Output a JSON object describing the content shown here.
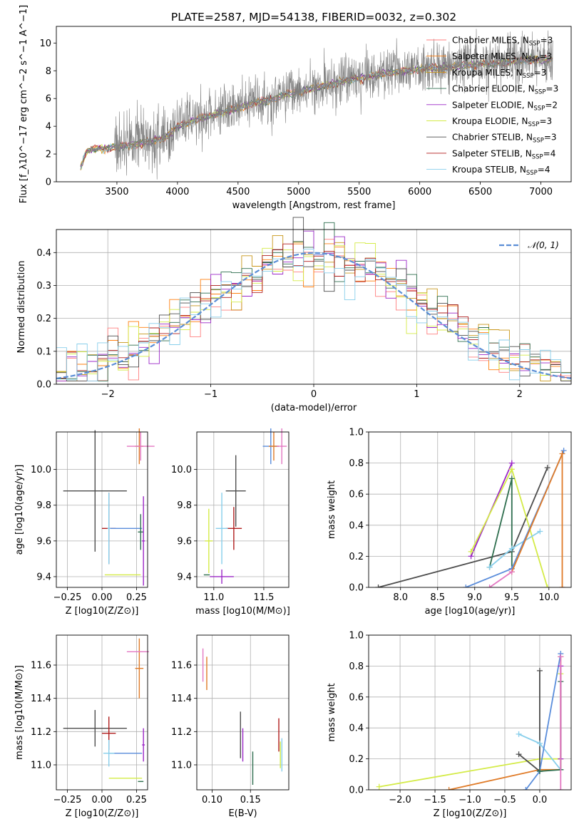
{
  "figure": {
    "title": "PLATE=2587, MJD=54138, FIBERID=0032, z=0.302"
  },
  "colors": {
    "chabrier_miles": "#ff7f7f",
    "salpeter_miles": "#ff7f0e",
    "kroupa_miles": "#c89619",
    "chabrier_elodie": "#2f6f4f",
    "salpeter_elodie": "#9b27c7",
    "kroupa_elodie": "#d4eb47",
    "chabrier_stelib": "#4d4d4d",
    "salpeter_stelib": "#b01c1c",
    "kroupa_stelib": "#87ceeb",
    "blue_model": "#5a8ddb",
    "pink_model": "#e377c2",
    "orange_model": "#e07b28",
    "spectrum": "#7f7f7f",
    "normal_curve": "#5b8ed6",
    "grid": "#b0b0b0"
  },
  "chart_data": [
    {
      "id": "spectrum",
      "type": "line",
      "xlabel": "wavelength [Angstrom, rest frame]",
      "ylabel": "Flux [f_λ10^−17 erg cm^−2 s^−1 A^−1]",
      "xlim": [
        3000,
        7250
      ],
      "ylim": [
        0,
        11.2
      ],
      "xticks": [
        3500,
        4000,
        4500,
        5000,
        5500,
        6000,
        6500,
        7000
      ],
      "yticks": [
        0,
        2,
        4,
        6,
        8,
        10
      ],
      "grid": false,
      "legend_position": "upper right",
      "legend": [
        {
          "label": "Chabrier MILES, N",
          "sub": "SSP",
          "tail": "=3",
          "color": "chabrier_miles"
        },
        {
          "label": "Salpeter MILES, N",
          "sub": "SSP",
          "tail": "=3",
          "color": "salpeter_miles"
        },
        {
          "label": "Kroupa MILES, N",
          "sub": "SSP",
          "tail": "=3",
          "color": "kroupa_miles"
        },
        {
          "label": "Chabrier ELODIE, N",
          "sub": "SSP",
          "tail": "=3",
          "color": "chabrier_elodie"
        },
        {
          "label": "Salpeter ELODIE, N",
          "sub": "SSP",
          "tail": "=2",
          "color": "salpeter_elodie"
        },
        {
          "label": "Kroupa ELODIE, N",
          "sub": "SSP",
          "tail": "=3",
          "color": "kroupa_elodie"
        },
        {
          "label": "Chabrier STELIB, N",
          "sub": "SSP",
          "tail": "=3",
          "color": "chabrier_stelib"
        },
        {
          "label": "Salpeter STELIB, N",
          "sub": "SSP",
          "tail": "=4",
          "color": "salpeter_stelib"
        },
        {
          "label": "Kroupa STELIB, N",
          "sub": "SSP",
          "tail": "=4",
          "color": "kroupa_stelib"
        }
      ],
      "continuum": {
        "x": [
          3200,
          3250,
          3300,
          3400,
          3500,
          3600,
          3700,
          3800,
          3900,
          4000,
          4100,
          4200,
          4300,
          4400,
          4500,
          4600,
          4700,
          4800,
          4900,
          5000,
          5100,
          5200,
          5300,
          5400,
          5500,
          5600,
          5700,
          5800,
          5900,
          6000,
          6100,
          6200,
          6300,
          6400,
          6500,
          6600,
          6700,
          6800,
          6900,
          7000,
          7100
        ],
        "y": [
          1.0,
          2.2,
          2.35,
          2.4,
          2.5,
          2.6,
          2.8,
          3.0,
          3.2,
          4.0,
          4.3,
          4.6,
          4.8,
          5.1,
          5.3,
          5.6,
          5.8,
          6.0,
          6.3,
          6.5,
          6.7,
          6.9,
          7.1,
          7.3,
          7.5,
          7.6,
          7.8,
          7.9,
          8.0,
          8.1,
          8.2,
          8.2,
          8.3,
          8.4,
          8.5,
          8.5,
          8.6,
          8.7,
          8.8,
          8.8,
          8.8
        ]
      }
    },
    {
      "id": "residuals",
      "type": "histogram",
      "xlabel": "(data-model)/error",
      "ylabel": "Normed distribution",
      "xlim": [
        -2.5,
        2.5
      ],
      "ylim": [
        0,
        0.47
      ],
      "xticks": [
        -2,
        -1,
        0,
        1,
        2
      ],
      "yticks": [
        0.0,
        0.1,
        0.2,
        0.3,
        0.4
      ],
      "grid": true,
      "legend": "𝒩(0, 1)",
      "legend_position": "upper right",
      "bin_width": 0.1
    },
    {
      "id": "age_vs_Z",
      "type": "errorbar",
      "xlabel": "Z [log10(Z/Z⊙)]",
      "ylabel": "age [log10(age/yr)]",
      "xlim": [
        -0.33,
        0.33
      ],
      "ylim": [
        9.34,
        10.21
      ],
      "xticks": [
        -0.25,
        0.0,
        0.25
      ],
      "yticks": [
        9.4,
        9.6,
        9.8,
        10.0
      ],
      "grid": true,
      "bars": [
        {
          "x": -0.05,
          "y": 9.88,
          "xerr": 0.23,
          "yerr": 0.34,
          "color": "chabrier_stelib"
        },
        {
          "x": 0.05,
          "y": 9.67,
          "xerr": 0.05,
          "yerr": 0.2,
          "color": "salpeter_stelib"
        },
        {
          "x": 0.17,
          "y": 9.67,
          "xerr": 0.12,
          "yerr": 0.0,
          "color": "blue_model"
        },
        {
          "x": 0.27,
          "y": 10.13,
          "xerr": 0.03,
          "yerr": 0.1,
          "color": "orange_model"
        },
        {
          "x": 0.28,
          "y": 10.13,
          "xerr": 0.1,
          "yerr": 0.08,
          "color": "pink_model"
        },
        {
          "x": 0.28,
          "y": 9.65,
          "xerr": 0.02,
          "yerr": 0.1,
          "color": "chabrier_elodie"
        },
        {
          "x": 0.15,
          "y": 9.41,
          "xerr": 0.13,
          "yerr": 0.0,
          "color": "kroupa_elodie"
        },
        {
          "x": 0.3,
          "y": 9.6,
          "xerr": 0.01,
          "yerr": 0.25,
          "color": "salpeter_elodie"
        },
        {
          "x": 0.05,
          "y": 9.67,
          "xerr": 0.01,
          "yerr": 0.2,
          "color": "kroupa_stelib"
        }
      ]
    },
    {
      "id": "age_vs_mass",
      "type": "errorbar",
      "xlabel": "mass [log10(M/M⊙)]",
      "ylabel": "",
      "xlim": [
        10.83,
        11.75
      ],
      "ylim": [
        9.34,
        10.21
      ],
      "xticks": [
        11.0,
        11.5
      ],
      "yticks": [
        9.4,
        9.6,
        9.8,
        10.0
      ],
      "grid": true,
      "bars": [
        {
          "x": 11.22,
          "y": 9.88,
          "xerr": 0.1,
          "yerr": 0.2,
          "color": "chabrier_stelib"
        },
        {
          "x": 11.2,
          "y": 9.67,
          "xerr": 0.08,
          "yerr": 0.12,
          "color": "salpeter_stelib"
        },
        {
          "x": 11.08,
          "y": 9.67,
          "xerr": 0.06,
          "yerr": 0.2,
          "color": "kroupa_stelib"
        },
        {
          "x": 11.08,
          "y": 9.4,
          "xerr": 0.12,
          "yerr": 0.04,
          "color": "salpeter_elodie"
        },
        {
          "x": 10.95,
          "y": 9.6,
          "xerr": 0.04,
          "yerr": 0.18,
          "color": "kroupa_elodie"
        },
        {
          "x": 10.93,
          "y": 9.41,
          "xerr": 0.03,
          "yerr": 0.0,
          "color": "chabrier_elodie"
        },
        {
          "x": 11.57,
          "y": 10.13,
          "xerr": 0.08,
          "yerr": 0.1,
          "color": "blue_model"
        },
        {
          "x": 11.6,
          "y": 10.13,
          "xerr": 0.05,
          "yerr": 0.08,
          "color": "orange_model"
        },
        {
          "x": 11.68,
          "y": 10.13,
          "xerr": 0.05,
          "yerr": 0.1,
          "color": "pink_model"
        }
      ]
    },
    {
      "id": "weight_vs_age",
      "type": "line",
      "xlabel": "age [log10(age/yr)]",
      "ylabel": "mass weight",
      "xlim": [
        7.57,
        10.3
      ],
      "ylim": [
        0,
        1
      ],
      "xticks": [
        8.0,
        8.5,
        9.0,
        9.5,
        10.0
      ],
      "yticks": [
        0.0,
        0.2,
        0.4,
        0.6,
        0.8,
        1.0
      ],
      "grid": true,
      "series": [
        {
          "color": "chabrier_stelib",
          "x": [
            7.7,
            9.5,
            9.98
          ],
          "y": [
            0.0,
            0.23,
            0.77
          ]
        },
        {
          "color": "salpeter_elodie",
          "x": [
            8.95,
            9.5
          ],
          "y": [
            0.2,
            0.8
          ]
        },
        {
          "color": "kroupa_elodie",
          "x": [
            8.95,
            9.5,
            9.98
          ],
          "y": [
            0.23,
            0.76,
            0.0
          ]
        },
        {
          "color": "chabrier_elodie",
          "x": [
            9.2,
            9.5,
            9.5
          ],
          "y": [
            0.13,
            0.7,
            0.12
          ]
        },
        {
          "color": "kroupa_stelib",
          "x": [
            9.2,
            9.5,
            9.88
          ],
          "y": [
            0.13,
            0.25,
            0.36
          ]
        },
        {
          "color": "blue_model",
          "x": [
            8.88,
            9.5,
            10.2
          ],
          "y": [
            0.0,
            0.12,
            0.88
          ]
        },
        {
          "color": "orange_model",
          "x": [
            9.5,
            10.18,
            10.18
          ],
          "y": [
            0.1,
            0.86,
            0.0
          ]
        },
        {
          "color": "pink_model",
          "x": [
            9.2,
            9.5
          ],
          "y": [
            0.0,
            0.1
          ]
        }
      ]
    },
    {
      "id": "mass_vs_Z",
      "type": "errorbar",
      "xlabel": "Z [log10(Z/Z⊙)]",
      "ylabel": "mass [log10(M/M⊙)]",
      "xlim": [
        -0.33,
        0.33
      ],
      "ylim": [
        10.85,
        11.78
      ],
      "xticks": [
        -0.25,
        0.0,
        0.25
      ],
      "yticks": [
        11.0,
        11.2,
        11.4,
        11.6
      ],
      "grid": true,
      "bars": [
        {
          "x": -0.05,
          "y": 11.22,
          "xerr": 0.23,
          "yerr": 0.11,
          "color": "chabrier_stelib"
        },
        {
          "x": 0.05,
          "y": 11.19,
          "xerr": 0.05,
          "yerr": 0.1,
          "color": "salpeter_stelib"
        },
        {
          "x": 0.17,
          "y": 11.07,
          "xerr": 0.12,
          "yerr": 0.0,
          "color": "blue_model"
        },
        {
          "x": 0.05,
          "y": 11.07,
          "xerr": 0.04,
          "yerr": 0.08,
          "color": "kroupa_stelib"
        },
        {
          "x": 0.27,
          "y": 11.58,
          "xerr": 0.03,
          "yerr": 0.18,
          "color": "orange_model"
        },
        {
          "x": 0.26,
          "y": 11.68,
          "xerr": 0.08,
          "yerr": 0.0,
          "color": "pink_model"
        },
        {
          "x": 0.17,
          "y": 10.92,
          "xerr": 0.12,
          "yerr": 0.0,
          "color": "kroupa_elodie"
        },
        {
          "x": 0.28,
          "y": 10.9,
          "xerr": 0.02,
          "yerr": 0.0,
          "color": "chabrier_elodie"
        },
        {
          "x": 0.3,
          "y": 11.12,
          "xerr": 0.01,
          "yerr": 0.1,
          "color": "salpeter_elodie"
        }
      ]
    },
    {
      "id": "mass_vs_EBV",
      "type": "errorbar",
      "xlabel": "E(B-V)",
      "ylabel": "",
      "xlim": [
        0.08,
        0.2
      ],
      "ylim": [
        10.85,
        11.78
      ],
      "xticks": [
        0.1,
        0.15
      ],
      "yticks": [
        11.0,
        11.2,
        11.4,
        11.6
      ],
      "grid": true,
      "bars": [
        {
          "x": 0.088,
          "y": 11.6,
          "xerr": 0.0,
          "yerr": 0.1,
          "color": "pink_model"
        },
        {
          "x": 0.093,
          "y": 11.55,
          "xerr": 0.0,
          "yerr": 0.1,
          "color": "orange_model"
        },
        {
          "x": 0.137,
          "y": 11.18,
          "xerr": 0.0,
          "yerr": 0.14,
          "color": "chabrier_stelib"
        },
        {
          "x": 0.14,
          "y": 11.12,
          "xerr": 0.0,
          "yerr": 0.1,
          "color": "salpeter_elodie"
        },
        {
          "x": 0.153,
          "y": 10.98,
          "xerr": 0.0,
          "yerr": 0.1,
          "color": "chabrier_elodie"
        },
        {
          "x": 0.187,
          "y": 11.18,
          "xerr": 0.0,
          "yerr": 0.1,
          "color": "salpeter_stelib"
        },
        {
          "x": 0.189,
          "y": 11.06,
          "xerr": 0.0,
          "yerr": 0.08,
          "color": "kroupa_elodie"
        },
        {
          "x": 0.191,
          "y": 11.06,
          "xerr": 0.0,
          "yerr": 0.1,
          "color": "kroupa_stelib"
        }
      ]
    },
    {
      "id": "weight_vs_Z",
      "type": "line",
      "xlabel": "Z [log10(Z/Z⊙)]",
      "ylabel": "mass weight",
      "xlim": [
        -2.45,
        0.45
      ],
      "ylim": [
        0,
        1
      ],
      "xticks": [
        -2.0,
        -1.5,
        -1.0,
        -0.5,
        0.0
      ],
      "yticks": [
        0.0,
        0.2,
        0.4,
        0.6,
        0.8,
        1.0
      ],
      "grid": true,
      "series": [
        {
          "color": "kroupa_elodie",
          "x": [
            -2.3,
            0.0,
            0.3,
            0.3
          ],
          "y": [
            0.02,
            0.2,
            0.2,
            0.75
          ]
        },
        {
          "color": "orange_model",
          "x": [
            -1.3,
            0.0,
            0.3,
            0.3
          ],
          "y": [
            0.0,
            0.13,
            0.13,
            0.86
          ]
        },
        {
          "color": "chabrier_stelib",
          "x": [
            -0.3,
            0.0,
            0.0
          ],
          "y": [
            0.23,
            0.12,
            0.77
          ]
        },
        {
          "color": "kroupa_stelib",
          "x": [
            -0.3,
            0.0,
            0.3
          ],
          "y": [
            0.36,
            0.3,
            0.13
          ]
        },
        {
          "color": "blue_model",
          "x": [
            -0.2,
            0.0,
            0.3
          ],
          "y": [
            0.0,
            0.12,
            0.88
          ]
        },
        {
          "color": "chabrier_elodie",
          "x": [
            0.0,
            0.3,
            0.3
          ],
          "y": [
            0.12,
            0.13,
            0.7
          ]
        },
        {
          "color": "salpeter_elodie",
          "x": [
            0.3,
            0.3
          ],
          "y": [
            0.2,
            0.8
          ]
        },
        {
          "color": "pink_model",
          "x": [
            0.3,
            0.3
          ],
          "y": [
            0.0,
            0.86
          ]
        }
      ]
    }
  ]
}
